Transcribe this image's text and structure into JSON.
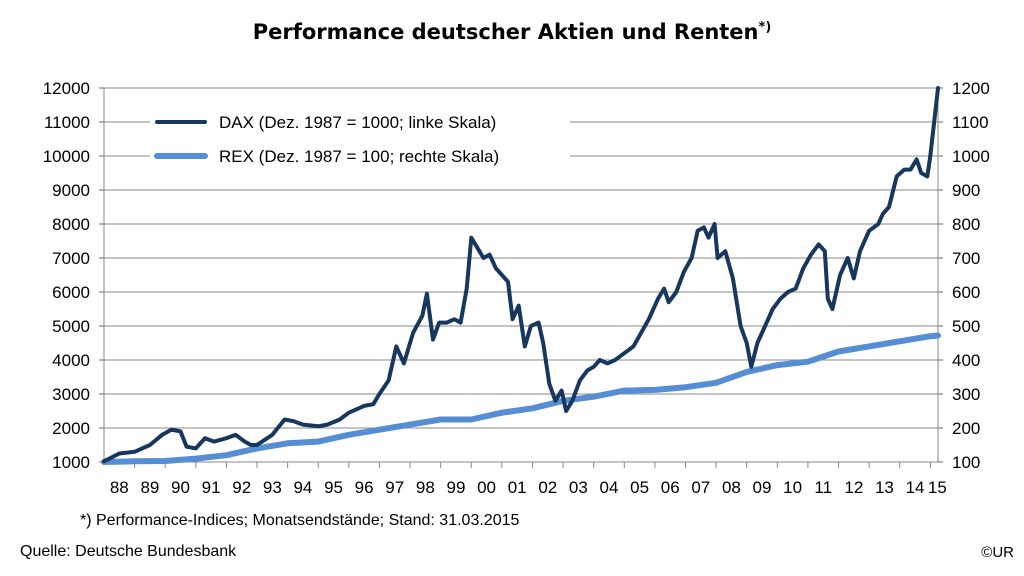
{
  "title": "Performance deutscher Aktien und Renten",
  "title_suffix": "*)",
  "footnote": "*) Performance-Indices; Monatsendstände; Stand: 31.03.2015",
  "source": "Quelle: Deutsche Bundesbank",
  "copyright": "©UR",
  "colors": {
    "dax": "#17375E",
    "rex": "#558ED5",
    "grid": "#888888"
  },
  "chart_data": {
    "type": "line",
    "title": "Performance deutscher Aktien und Renten",
    "x_tick_labels": [
      "88",
      "89",
      "90",
      "91",
      "92",
      "93",
      "94",
      "95",
      "96",
      "97",
      "98",
      "99",
      "00",
      "01",
      "02",
      "03",
      "04",
      "05",
      "06",
      "07",
      "08",
      "09",
      "10",
      "11",
      "12",
      "13",
      "14",
      "15"
    ],
    "x_range": [
      1988.0,
      2015.25
    ],
    "y_left": {
      "range": [
        1000,
        12000
      ],
      "ticks": [
        1000,
        2000,
        3000,
        4000,
        5000,
        6000,
        7000,
        8000,
        9000,
        10000,
        11000,
        12000
      ]
    },
    "y_right": {
      "range": [
        100,
        1200
      ],
      "ticks": [
        100,
        200,
        300,
        400,
        500,
        600,
        700,
        800,
        900,
        1000,
        1100,
        1200
      ]
    },
    "grid": true,
    "legend_position": "top-left",
    "series": [
      {
        "name": "DAX (Dez. 1987 = 1000; linke Skala)",
        "axis": "left",
        "points": [
          [
            1988.0,
            1020
          ],
          [
            1988.5,
            1250
          ],
          [
            1989.0,
            1300
          ],
          [
            1989.5,
            1500
          ],
          [
            1989.9,
            1800
          ],
          [
            1990.2,
            1950
          ],
          [
            1990.5,
            1900
          ],
          [
            1990.7,
            1450
          ],
          [
            1991.0,
            1400
          ],
          [
            1991.3,
            1700
          ],
          [
            1991.6,
            1600
          ],
          [
            1992.0,
            1700
          ],
          [
            1992.3,
            1800
          ],
          [
            1992.6,
            1600
          ],
          [
            1992.8,
            1500
          ],
          [
            1993.0,
            1500
          ],
          [
            1993.5,
            1800
          ],
          [
            1993.9,
            2250
          ],
          [
            1994.2,
            2200
          ],
          [
            1994.5,
            2100
          ],
          [
            1995.0,
            2050
          ],
          [
            1995.3,
            2100
          ],
          [
            1995.7,
            2250
          ],
          [
            1996.0,
            2450
          ],
          [
            1996.5,
            2650
          ],
          [
            1996.8,
            2700
          ],
          [
            1997.0,
            3000
          ],
          [
            1997.3,
            3400
          ],
          [
            1997.55,
            4400
          ],
          [
            1997.8,
            3900
          ],
          [
            1998.1,
            4800
          ],
          [
            1998.4,
            5300
          ],
          [
            1998.55,
            5950
          ],
          [
            1998.75,
            4600
          ],
          [
            1998.95,
            5100
          ],
          [
            1999.2,
            5100
          ],
          [
            1999.45,
            5200
          ],
          [
            1999.65,
            5100
          ],
          [
            1999.85,
            6100
          ],
          [
            2000.0,
            7600
          ],
          [
            2000.2,
            7300
          ],
          [
            2000.4,
            7000
          ],
          [
            2000.6,
            7100
          ],
          [
            2000.8,
            6700
          ],
          [
            2001.0,
            6500
          ],
          [
            2001.2,
            6300
          ],
          [
            2001.35,
            5200
          ],
          [
            2001.55,
            5600
          ],
          [
            2001.75,
            4400
          ],
          [
            2001.95,
            5000
          ],
          [
            2002.2,
            5100
          ],
          [
            2002.35,
            4500
          ],
          [
            2002.55,
            3300
          ],
          [
            2002.75,
            2800
          ],
          [
            2002.95,
            3100
          ],
          [
            2003.1,
            2500
          ],
          [
            2003.3,
            2800
          ],
          [
            2003.55,
            3400
          ],
          [
            2003.8,
            3700
          ],
          [
            2004.0,
            3800
          ],
          [
            2004.2,
            4000
          ],
          [
            2004.45,
            3900
          ],
          [
            2004.7,
            4000
          ],
          [
            2005.0,
            4200
          ],
          [
            2005.3,
            4400
          ],
          [
            2005.55,
            4800
          ],
          [
            2005.8,
            5200
          ],
          [
            2006.1,
            5800
          ],
          [
            2006.3,
            6100
          ],
          [
            2006.45,
            5700
          ],
          [
            2006.7,
            6000
          ],
          [
            2006.95,
            6600
          ],
          [
            2007.2,
            7000
          ],
          [
            2007.4,
            7800
          ],
          [
            2007.6,
            7900
          ],
          [
            2007.75,
            7600
          ],
          [
            2007.95,
            8000
          ],
          [
            2008.05,
            7000
          ],
          [
            2008.3,
            7200
          ],
          [
            2008.55,
            6400
          ],
          [
            2008.8,
            5000
          ],
          [
            2009.0,
            4500
          ],
          [
            2009.15,
            3800
          ],
          [
            2009.35,
            4500
          ],
          [
            2009.6,
            5000
          ],
          [
            2009.85,
            5500
          ],
          [
            2010.1,
            5800
          ],
          [
            2010.35,
            6000
          ],
          [
            2010.6,
            6100
          ],
          [
            2010.85,
            6700
          ],
          [
            2011.1,
            7100
          ],
          [
            2011.35,
            7400
          ],
          [
            2011.55,
            7200
          ],
          [
            2011.65,
            5800
          ],
          [
            2011.8,
            5500
          ],
          [
            2012.05,
            6500
          ],
          [
            2012.3,
            7000
          ],
          [
            2012.5,
            6400
          ],
          [
            2012.7,
            7200
          ],
          [
            2013.0,
            7800
          ],
          [
            2013.3,
            8000
          ],
          [
            2013.45,
            8300
          ],
          [
            2013.65,
            8500
          ],
          [
            2013.9,
            9400
          ],
          [
            2014.15,
            9600
          ],
          [
            2014.35,
            9600
          ],
          [
            2014.55,
            9900
          ],
          [
            2014.7,
            9500
          ],
          [
            2014.9,
            9400
          ],
          [
            2015.0,
            10000
          ],
          [
            2015.1,
            10800
          ],
          [
            2015.25,
            12000
          ]
        ]
      },
      {
        "name": "REX (Dez. 1987 = 100; rechte Skala)",
        "axis": "right",
        "points": [
          [
            1988.0,
            100
          ],
          [
            1989.0,
            102
          ],
          [
            1990.0,
            103
          ],
          [
            1991.0,
            110
          ],
          [
            1992.0,
            120
          ],
          [
            1993.0,
            140
          ],
          [
            1994.0,
            155
          ],
          [
            1995.0,
            160
          ],
          [
            1996.0,
            180
          ],
          [
            1997.0,
            195
          ],
          [
            1998.0,
            210
          ],
          [
            1999.0,
            225
          ],
          [
            2000.0,
            225
          ],
          [
            2001.0,
            245
          ],
          [
            2002.0,
            258
          ],
          [
            2003.0,
            280
          ],
          [
            2004.0,
            292
          ],
          [
            2005.0,
            310
          ],
          [
            2006.0,
            312
          ],
          [
            2007.0,
            320
          ],
          [
            2008.0,
            333
          ],
          [
            2009.0,
            365
          ],
          [
            2010.0,
            385
          ],
          [
            2011.0,
            395
          ],
          [
            2012.0,
            425
          ],
          [
            2013.0,
            440
          ],
          [
            2014.0,
            455
          ],
          [
            2015.0,
            470
          ],
          [
            2015.25,
            472
          ]
        ]
      }
    ]
  }
}
